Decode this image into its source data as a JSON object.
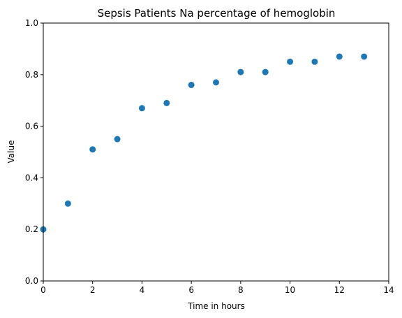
{
  "chart_data": {
    "type": "scatter",
    "title": "Sepsis Patients Na percentage of hemoglobin",
    "xlabel": "Time in hours",
    "ylabel": "Value",
    "xlim": [
      0,
      14
    ],
    "ylim": [
      0,
      1.0
    ],
    "x_ticks": [
      0,
      2,
      4,
      6,
      8,
      10,
      12,
      14
    ],
    "y_ticks": [
      0.0,
      0.2,
      0.4,
      0.6,
      0.8,
      1.0
    ],
    "x_tick_labels": [
      "0",
      "2",
      "4",
      "6",
      "8",
      "10",
      "12",
      "14"
    ],
    "y_tick_labels": [
      "0.0",
      "0.2",
      "0.4",
      "0.6",
      "0.8",
      "1.0"
    ],
    "grid": false,
    "series": [
      {
        "color": "#1f77b4",
        "x": [
          0,
          1,
          2,
          3,
          4,
          5,
          6,
          7,
          8,
          9,
          10,
          11,
          12,
          13
        ],
        "y": [
          0.2,
          0.3,
          0.51,
          0.55,
          0.67,
          0.69,
          0.76,
          0.77,
          0.81,
          0.81,
          0.85,
          0.85,
          0.87,
          0.87
        ]
      }
    ]
  }
}
